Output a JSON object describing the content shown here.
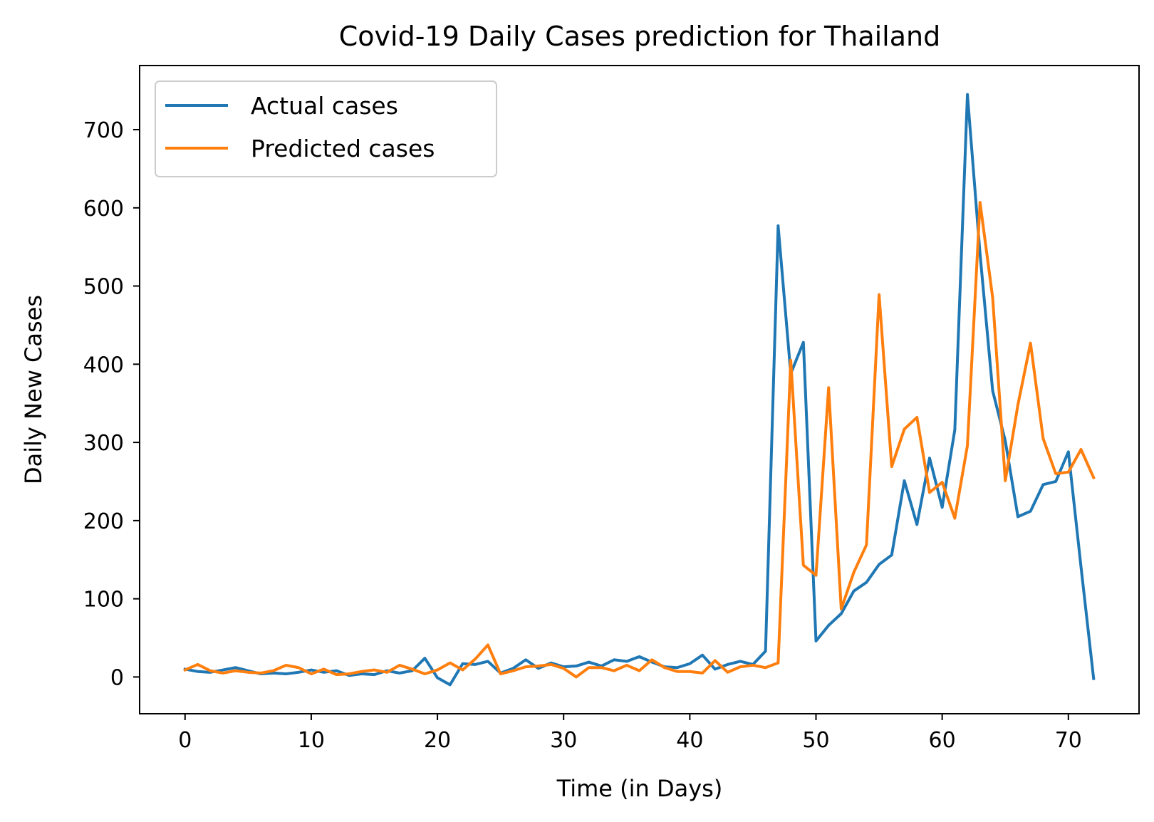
{
  "chart_data": {
    "type": "line",
    "title": "Covid-19 Daily Cases prediction for Thailand",
    "xlabel": "Time (in Days)",
    "ylabel": "Daily New Cases",
    "xlim": [
      -3.6,
      75.6
    ],
    "ylim": [
      -47,
      782
    ],
    "xticks": [
      0,
      10,
      20,
      30,
      40,
      50,
      60,
      70
    ],
    "yticks": [
      0,
      100,
      200,
      300,
      400,
      500,
      600,
      700
    ],
    "grid": false,
    "legend_position": "top-left",
    "series": [
      {
        "name": "Actual cases",
        "color": "#1f77b4",
        "values": [
          10,
          7,
          6,
          9,
          12,
          8,
          4,
          5,
          4,
          6,
          9,
          6,
          8,
          2,
          4,
          3,
          8,
          5,
          8,
          24,
          -1,
          -10,
          17,
          16,
          20,
          5,
          11,
          22,
          11,
          18,
          13,
          14,
          19,
          14,
          22,
          20,
          26,
          19,
          13,
          12,
          17,
          28,
          10,
          16,
          20,
          16,
          33,
          577,
          388,
          428,
          46,
          66,
          81,
          110,
          121,
          144,
          156,
          251,
          195,
          280,
          217,
          316,
          745,
          541,
          366,
          302,
          205,
          212,
          246,
          250,
          288,
          141,
          -2
        ]
      },
      {
        "name": "Predicted cases",
        "color": "#ff7f0e",
        "values": [
          9,
          16,
          8,
          5,
          8,
          6,
          5,
          8,
          15,
          12,
          4,
          10,
          3,
          4,
          7,
          9,
          6,
          15,
          10,
          4,
          9,
          18,
          9,
          23,
          41,
          4,
          8,
          13,
          14,
          16,
          11,
          0,
          12,
          12,
          8,
          15,
          8,
          22,
          12,
          7,
          7,
          5,
          21,
          6,
          13,
          15,
          12,
          18,
          405,
          143,
          130,
          370,
          87,
          134,
          169,
          489,
          269,
          317,
          332,
          236,
          249,
          203,
          296,
          607,
          485,
          251,
          348,
          427,
          305,
          260,
          262,
          291,
          255
        ]
      }
    ]
  }
}
